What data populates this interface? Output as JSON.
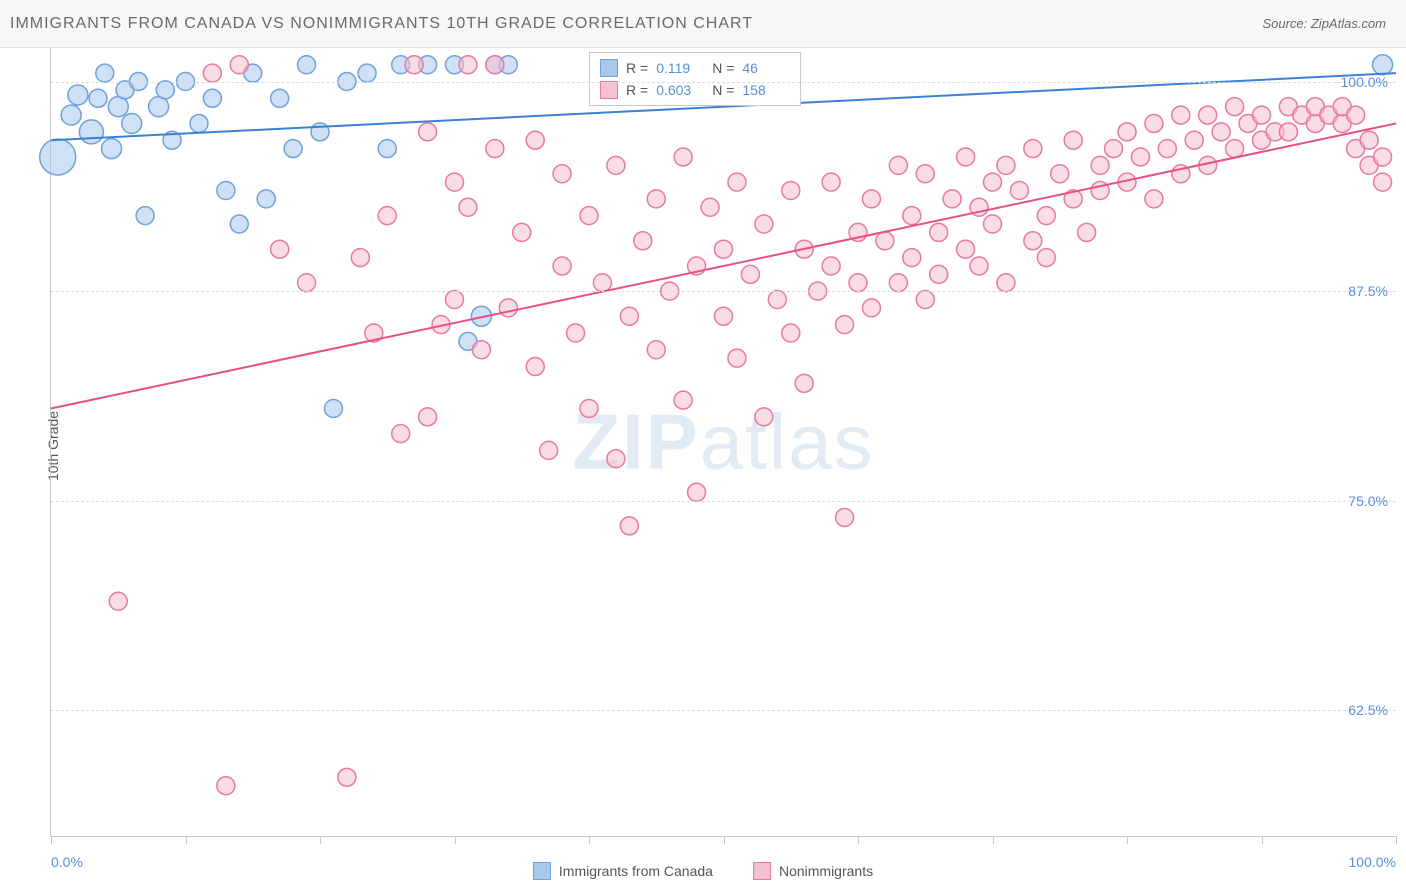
{
  "title": "IMMIGRANTS FROM CANADA VS NONIMMIGRANTS 10TH GRADE CORRELATION CHART",
  "source": "Source: ZipAtlas.com",
  "y_axis_label": "10th Grade",
  "watermark": "ZIPatlas",
  "chart": {
    "type": "scatter",
    "xlim": [
      0,
      100
    ],
    "ylim": [
      55,
      102
    ],
    "y_ticks": [
      62.5,
      75.0,
      87.5,
      100.0
    ],
    "y_tick_labels": [
      "62.5%",
      "75.0%",
      "87.5%",
      "100.0%"
    ],
    "x_ticks": [
      0,
      10,
      20,
      30,
      40,
      50,
      60,
      70,
      80,
      90,
      100
    ],
    "x_min_label": "0.0%",
    "x_max_label": "100.0%",
    "background_color": "#ffffff",
    "grid_color": "#dcdcdc",
    "axis_color": "#c8c8c8",
    "marker_radius": 9,
    "marker_opacity": 0.55,
    "series": [
      {
        "name": "Immigrants from Canada",
        "color_fill": "#a9c8ec",
        "color_stroke": "#6fa2dc",
        "r_value": "0.119",
        "n_value": "46",
        "trend": {
          "x1": 0,
          "y1": 96.5,
          "x2": 100,
          "y2": 100.5,
          "color": "#3b82d6",
          "width": 2
        },
        "points": [
          [
            0.5,
            95.5,
            18
          ],
          [
            1.5,
            98.0,
            10
          ],
          [
            2.0,
            99.2,
            10
          ],
          [
            3.0,
            97.0,
            12
          ],
          [
            3.5,
            99.0,
            9
          ],
          [
            4.0,
            100.5,
            9
          ],
          [
            4.5,
            96.0,
            10
          ],
          [
            5.0,
            98.5,
            10
          ],
          [
            5.5,
            99.5,
            9
          ],
          [
            6.0,
            97.5,
            10
          ],
          [
            6.5,
            100.0,
            9
          ],
          [
            7.0,
            92.0,
            9
          ],
          [
            8.0,
            98.5,
            10
          ],
          [
            8.5,
            99.5,
            9
          ],
          [
            9.0,
            96.5,
            9
          ],
          [
            10.0,
            100.0,
            9
          ],
          [
            11.0,
            97.5,
            9
          ],
          [
            12.0,
            99.0,
            9
          ],
          [
            13.0,
            93.5,
            9
          ],
          [
            14.0,
            91.5,
            9
          ],
          [
            15.0,
            100.5,
            9
          ],
          [
            16.0,
            93.0,
            9
          ],
          [
            17.0,
            99.0,
            9
          ],
          [
            18.0,
            96.0,
            9
          ],
          [
            19.0,
            101.0,
            9
          ],
          [
            20.0,
            97.0,
            9
          ],
          [
            21.0,
            80.5,
            9
          ],
          [
            22.0,
            100.0,
            9
          ],
          [
            23.5,
            100.5,
            9
          ],
          [
            25.0,
            96.0,
            9
          ],
          [
            26.0,
            101.0,
            9
          ],
          [
            28.0,
            101.0,
            9
          ],
          [
            30.0,
            101.0,
            9
          ],
          [
            31.0,
            84.5,
            9
          ],
          [
            32.0,
            86.0,
            10
          ],
          [
            33.0,
            101.0,
            9
          ],
          [
            34.0,
            101.0,
            9
          ],
          [
            99.0,
            101.0,
            10
          ]
        ]
      },
      {
        "name": "Nonimmigrants",
        "color_fill": "#f5c0cf",
        "color_stroke": "#e77aa0",
        "r_value": "0.603",
        "n_value": "158",
        "trend": {
          "x1": 0,
          "y1": 80.5,
          "x2": 100,
          "y2": 97.5,
          "color": "#e94f86",
          "width": 2
        },
        "points": [
          [
            5,
            69.0,
            9
          ],
          [
            12,
            100.5,
            9
          ],
          [
            13,
            58.0,
            9
          ],
          [
            14,
            101.0,
            9
          ],
          [
            17,
            90.0,
            9
          ],
          [
            19,
            88.0,
            9
          ],
          [
            22,
            58.5,
            9
          ],
          [
            23,
            89.5,
            9
          ],
          [
            24,
            85.0,
            9
          ],
          [
            25,
            92.0,
            9
          ],
          [
            26,
            79.0,
            9
          ],
          [
            27,
            101.0,
            9
          ],
          [
            28,
            80.0,
            9
          ],
          [
            28,
            97.0,
            9
          ],
          [
            29,
            85.5,
            9
          ],
          [
            30,
            94.0,
            9
          ],
          [
            30,
            87.0,
            9
          ],
          [
            31,
            101.0,
            9
          ],
          [
            31,
            92.5,
            9
          ],
          [
            32,
            84.0,
            9
          ],
          [
            33,
            96.0,
            9
          ],
          [
            33,
            101.0,
            9
          ],
          [
            34,
            86.5,
            9
          ],
          [
            35,
            91.0,
            9
          ],
          [
            36,
            83.0,
            9
          ],
          [
            36,
            96.5,
            9
          ],
          [
            37,
            78.0,
            9
          ],
          [
            38,
            89.0,
            9
          ],
          [
            38,
            94.5,
            9
          ],
          [
            39,
            85.0,
            9
          ],
          [
            40,
            80.5,
            9
          ],
          [
            40,
            92.0,
            9
          ],
          [
            41,
            88.0,
            9
          ],
          [
            42,
            77.5,
            9
          ],
          [
            42,
            95.0,
            9
          ],
          [
            43,
            86.0,
            9
          ],
          [
            43,
            73.5,
            9
          ],
          [
            44,
            90.5,
            9
          ],
          [
            45,
            84.0,
            9
          ],
          [
            45,
            93.0,
            9
          ],
          [
            46,
            87.5,
            9
          ],
          [
            47,
            81.0,
            9
          ],
          [
            47,
            95.5,
            9
          ],
          [
            48,
            75.5,
            9
          ],
          [
            48,
            89.0,
            9
          ],
          [
            49,
            92.5,
            9
          ],
          [
            50,
            86.0,
            9
          ],
          [
            50,
            90.0,
            9
          ],
          [
            51,
            83.5,
            9
          ],
          [
            51,
            94.0,
            9
          ],
          [
            52,
            88.5,
            9
          ],
          [
            53,
            80.0,
            9
          ],
          [
            53,
            91.5,
            9
          ],
          [
            54,
            87.0,
            9
          ],
          [
            55,
            93.5,
            9
          ],
          [
            55,
            85.0,
            9
          ],
          [
            56,
            90.0,
            9
          ],
          [
            56,
            82.0,
            9
          ],
          [
            57,
            87.5,
            9
          ],
          [
            58,
            94.0,
            9
          ],
          [
            58,
            89.0,
            9
          ],
          [
            59,
            85.5,
            9
          ],
          [
            59,
            74.0,
            9
          ],
          [
            60,
            91.0,
            9
          ],
          [
            60,
            88.0,
            9
          ],
          [
            61,
            93.0,
            9
          ],
          [
            61,
            86.5,
            9
          ],
          [
            62,
            90.5,
            9
          ],
          [
            63,
            88.0,
            9
          ],
          [
            63,
            95.0,
            9
          ],
          [
            64,
            92.0,
            9
          ],
          [
            64,
            89.5,
            9
          ],
          [
            65,
            87.0,
            9
          ],
          [
            65,
            94.5,
            9
          ],
          [
            66,
            91.0,
            9
          ],
          [
            66,
            88.5,
            9
          ],
          [
            67,
            93.0,
            9
          ],
          [
            68,
            90.0,
            9
          ],
          [
            68,
            95.5,
            9
          ],
          [
            69,
            92.5,
            9
          ],
          [
            69,
            89.0,
            9
          ],
          [
            70,
            94.0,
            9
          ],
          [
            70,
            91.5,
            9
          ],
          [
            71,
            88.0,
            9
          ],
          [
            71,
            95.0,
            9
          ],
          [
            72,
            93.5,
            9
          ],
          [
            73,
            90.5,
            9
          ],
          [
            73,
            96.0,
            9
          ],
          [
            74,
            92.0,
            9
          ],
          [
            74,
            89.5,
            9
          ],
          [
            75,
            94.5,
            9
          ],
          [
            76,
            93.0,
            9
          ],
          [
            76,
            96.5,
            9
          ],
          [
            77,
            91.0,
            9
          ],
          [
            78,
            95.0,
            9
          ],
          [
            78,
            93.5,
            9
          ],
          [
            79,
            96.0,
            9
          ],
          [
            80,
            94.0,
            9
          ],
          [
            80,
            97.0,
            9
          ],
          [
            81,
            95.5,
            9
          ],
          [
            82,
            93.0,
            9
          ],
          [
            82,
            97.5,
            9
          ],
          [
            83,
            96.0,
            9
          ],
          [
            84,
            94.5,
            9
          ],
          [
            84,
            98.0,
            9
          ],
          [
            85,
            96.5,
            9
          ],
          [
            86,
            95.0,
            9
          ],
          [
            86,
            98.0,
            9
          ],
          [
            87,
            97.0,
            9
          ],
          [
            88,
            96.0,
            9
          ],
          [
            88,
            98.5,
            9
          ],
          [
            89,
            97.5,
            9
          ],
          [
            90,
            96.5,
            9
          ],
          [
            90,
            98.0,
            9
          ],
          [
            91,
            97.0,
            9
          ],
          [
            92,
            98.5,
            9
          ],
          [
            92,
            97.0,
            9
          ],
          [
            93,
            98.0,
            9
          ],
          [
            94,
            97.5,
            9
          ],
          [
            94,
            98.5,
            9
          ],
          [
            95,
            98.0,
            9
          ],
          [
            96,
            97.5,
            9
          ],
          [
            96,
            98.5,
            9
          ],
          [
            97,
            98.0,
            9
          ],
          [
            97,
            96.0,
            9
          ],
          [
            98,
            95.0,
            9
          ],
          [
            98,
            96.5,
            9
          ],
          [
            99,
            94.0,
            9
          ],
          [
            99,
            95.5,
            9
          ]
        ]
      }
    ]
  },
  "legend_r_label": "R =",
  "legend_n_label": "N ="
}
